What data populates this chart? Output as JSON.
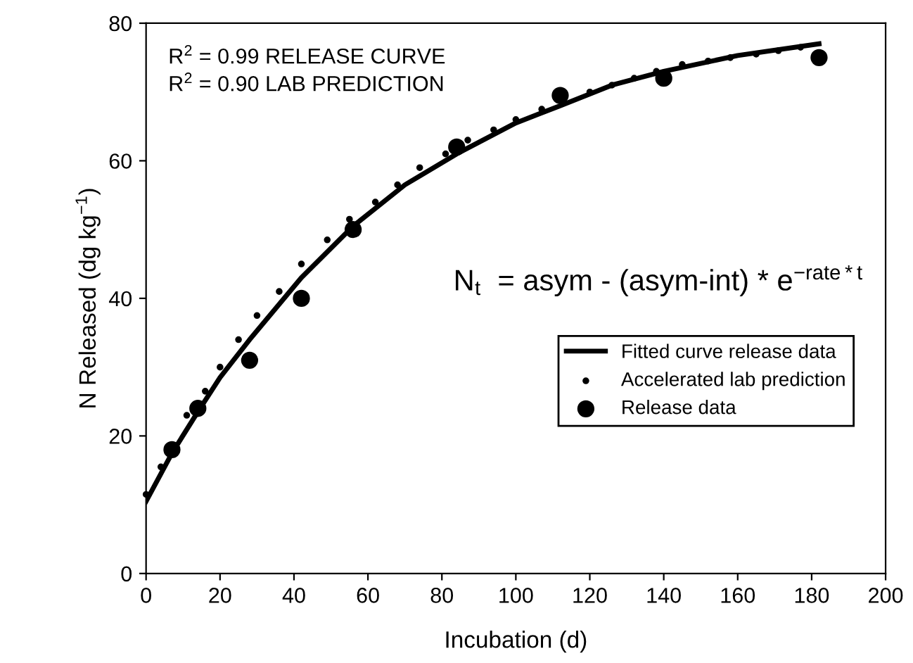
{
  "chart_data": {
    "type": "line",
    "xlabel": "Incubation (d)",
    "ylabel": "N Released (dg kg$^{−1}$)",
    "annotations": [
      "R$^{2}$ = 0.99 RELEASE CURVE",
      "R$^{2}$ = 0.90 LAB PREDICTION",
      "N$_{t}$  = asym - (asym-int) * e$^{−rate*t}$"
    ],
    "series": [
      {
        "name": "Fitted curve release data",
        "marker": "none",
        "line_style": "solid",
        "color": "#000000",
        "x": [
          0,
          7,
          14,
          20,
          28,
          42,
          56,
          70,
          84,
          100,
          112,
          126,
          140,
          160,
          182
        ],
        "values": [
          10.5,
          17.5,
          23.5,
          28.5,
          34,
          43,
          50.5,
          56.5,
          61,
          65.5,
          68,
          71,
          73,
          75.3,
          77
        ]
      },
      {
        "name": "Accelerated lab prediction",
        "type": "scatter",
        "marker": "circle",
        "color": "#000000",
        "x": [
          0,
          4,
          11,
          16,
          20,
          25,
          30,
          36,
          42,
          49,
          55,
          62,
          68,
          74,
          81,
          87,
          94,
          100,
          107,
          120,
          126,
          132,
          138,
          145,
          152,
          158,
          165,
          171,
          177
        ],
        "values": [
          11.5,
          15.5,
          23,
          26.5,
          30,
          34,
          37.5,
          41,
          45,
          48.5,
          51.5,
          54,
          56.5,
          59,
          61,
          63,
          64.5,
          66,
          67.5,
          70,
          71,
          72,
          73,
          74,
          74.5,
          75,
          75.5,
          76,
          76.5
        ]
      },
      {
        "name": "Release data",
        "type": "scatter",
        "marker": "circle",
        "color": "#000000",
        "x": [
          7,
          14,
          28,
          42,
          56,
          84,
          112,
          140,
          182
        ],
        "values": [
          18,
          24,
          31,
          40,
          50,
          62,
          69.5,
          72,
          75
        ]
      }
    ],
    "xlim": [
      0,
      200
    ],
    "xticks": [
      0,
      20,
      40,
      60,
      80,
      100,
      120,
      140,
      160,
      180,
      200
    ],
    "ylim": [
      0,
      80
    ],
    "yticks": [
      0,
      20,
      40,
      60,
      80
    ],
    "grid": false,
    "legend": "center right"
  }
}
